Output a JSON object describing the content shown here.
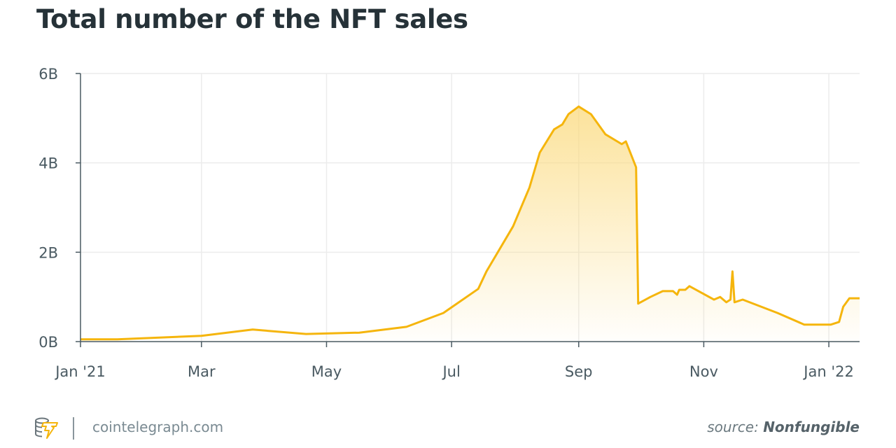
{
  "title": "Total number of the NFT sales",
  "footer": {
    "site": "cointelegraph.com",
    "source_prefix": "source:",
    "source_name": "Nonfungible",
    "logo": "cointelegraph-logo"
  },
  "colors": {
    "line": "#f5b50c",
    "fill": "#fbd97a",
    "grid": "#ececec",
    "title": "#263238"
  },
  "chart_data": {
    "type": "area",
    "title": "Total number of the NFT sales",
    "xlabel": "",
    "ylabel": "",
    "ylim": [
      0,
      6000000000
    ],
    "xlim": [
      "2021-01-01",
      "2022-01-16"
    ],
    "grid": true,
    "yticks": [
      {
        "v": 0,
        "label": "0B"
      },
      {
        "v": 2000000000,
        "label": "2B"
      },
      {
        "v": 4000000000,
        "label": "4B"
      },
      {
        "v": 6000000000,
        "label": "6B"
      }
    ],
    "xticks": [
      {
        "d": "2021-01-01",
        "label": "Jan '21"
      },
      {
        "d": "2021-03-01",
        "label": "Mar"
      },
      {
        "d": "2021-05-01",
        "label": "May"
      },
      {
        "d": "2021-07-01",
        "label": "Jul"
      },
      {
        "d": "2021-09-01",
        "label": "Sep"
      },
      {
        "d": "2021-11-01",
        "label": "Nov"
      },
      {
        "d": "2022-01-01",
        "label": "Jan '22"
      }
    ],
    "points": [
      [
        "2021-01-01",
        0.05
      ],
      [
        "2021-01-19",
        0.05
      ],
      [
        "2021-03-01",
        0.13
      ],
      [
        "2021-03-26",
        0.27
      ],
      [
        "2021-04-21",
        0.17
      ],
      [
        "2021-05-17",
        0.2
      ],
      [
        "2021-06-09",
        0.33
      ],
      [
        "2021-06-27",
        0.64
      ],
      [
        "2021-07-14",
        1.18
      ],
      [
        "2021-07-18",
        1.57
      ],
      [
        "2021-07-31",
        2.58
      ],
      [
        "2021-08-08",
        3.45
      ],
      [
        "2021-08-13",
        4.23
      ],
      [
        "2021-08-20",
        4.75
      ],
      [
        "2021-08-24",
        4.86
      ],
      [
        "2021-08-27",
        5.09
      ],
      [
        "2021-09-01",
        5.26
      ],
      [
        "2021-09-07",
        5.09
      ],
      [
        "2021-09-14",
        4.64
      ],
      [
        "2021-09-22",
        4.42
      ],
      [
        "2021-09-24",
        4.48
      ],
      [
        "2021-09-29",
        3.9
      ],
      [
        "2021-09-30",
        0.85
      ],
      [
        "2021-10-06",
        1.0
      ],
      [
        "2021-10-12",
        1.13
      ],
      [
        "2021-10-17",
        1.13
      ],
      [
        "2021-10-19",
        1.05
      ],
      [
        "2021-10-20",
        1.16
      ],
      [
        "2021-10-23",
        1.16
      ],
      [
        "2021-10-25",
        1.24
      ],
      [
        "2021-11-06",
        0.94
      ],
      [
        "2021-11-09",
        1.0
      ],
      [
        "2021-11-12",
        0.88
      ],
      [
        "2021-11-14",
        0.94
      ],
      [
        "2021-11-15",
        1.57
      ],
      [
        "2021-11-16",
        0.88
      ],
      [
        "2021-11-20",
        0.94
      ],
      [
        "2021-12-07",
        0.64
      ],
      [
        "2021-12-20",
        0.38
      ],
      [
        "2022-01-02",
        0.38
      ],
      [
        "2022-01-06",
        0.44
      ],
      [
        "2022-01-08",
        0.78
      ],
      [
        "2022-01-11",
        0.97
      ],
      [
        "2022-01-16",
        0.97
      ]
    ],
    "value_unit": "billions"
  }
}
